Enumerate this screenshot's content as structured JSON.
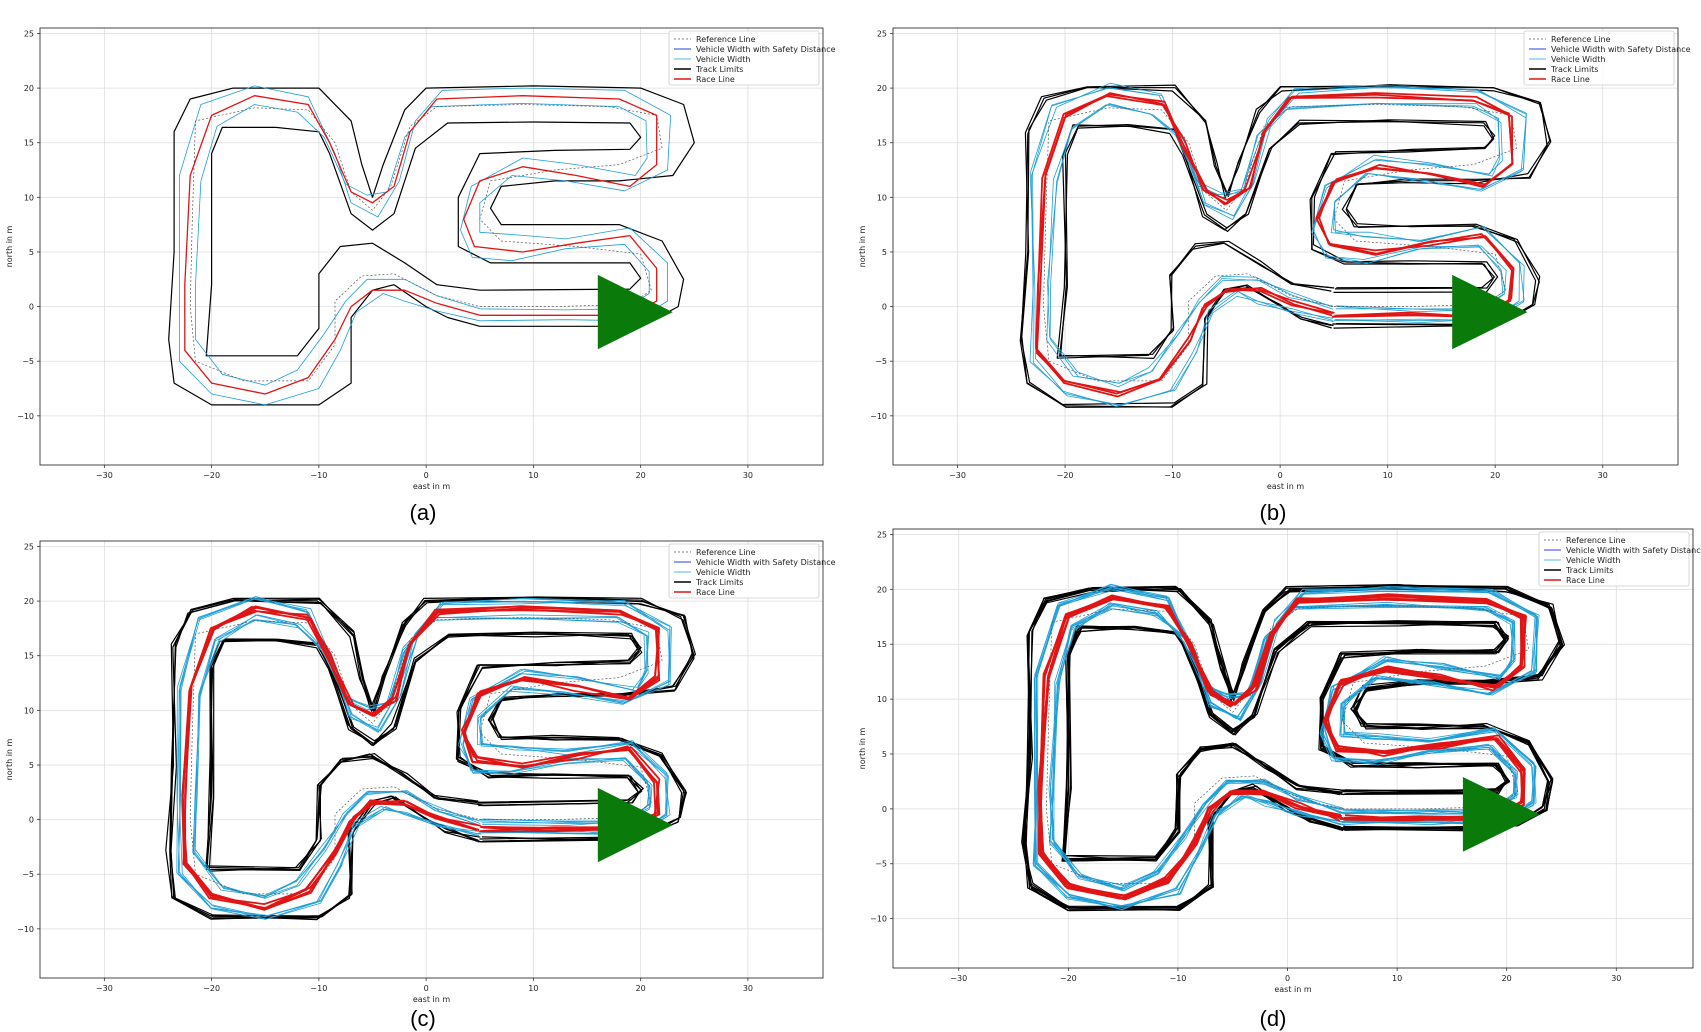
{
  "figure": {
    "captions": [
      "(a)",
      "(b)",
      "(c)",
      "(d)"
    ]
  },
  "chart_data": [
    {
      "type": "line",
      "panel": "(a)",
      "xlabel": "east in m",
      "ylabel": "north in m",
      "xlim": [
        -36,
        37
      ],
      "ylim": [
        -14.5,
        25.5
      ],
      "xticks": [
        -30,
        -20,
        -10,
        0,
        10,
        20,
        30
      ],
      "yticks": [
        -10,
        -5,
        0,
        5,
        10,
        15,
        20,
        25
      ],
      "grid": true,
      "legend_position": "top-right",
      "jitter_copies": 1,
      "legend": [
        "Reference Line",
        "Vehicle Width with Safety Distance",
        "Vehicle Width",
        "Track Limits",
        "Race Line"
      ],
      "start_marker": {
        "x": 16,
        "y": -0.5,
        "tip_x": 23,
        "color": "#0a7a0a"
      }
    },
    {
      "type": "line",
      "panel": "(b)",
      "xlabel": "east in m",
      "ylabel": "north in m",
      "xlim": [
        -36,
        37
      ],
      "ylim": [
        -14.5,
        25.5
      ],
      "xticks": [
        -30,
        -20,
        -10,
        0,
        10,
        20,
        30
      ],
      "yticks": [
        -10,
        -5,
        0,
        5,
        10,
        15,
        20,
        25
      ],
      "grid": true,
      "legend_position": "top-right",
      "jitter_copies": 3,
      "legend": [
        "Reference Line",
        "Vehicle Width with Safety Distance",
        "Vehicle Width",
        "Track Limits",
        "Race Line"
      ],
      "start_marker": {
        "x": 16,
        "y": -0.5,
        "tip_x": 23,
        "color": "#0a7a0a"
      }
    },
    {
      "type": "line",
      "panel": "(c)",
      "xlabel": "east in m",
      "ylabel": "north in m",
      "xlim": [
        -36,
        37
      ],
      "ylim": [
        -14.5,
        25.5
      ],
      "xticks": [
        -30,
        -20,
        -10,
        0,
        10,
        20,
        30
      ],
      "yticks": [
        -10,
        -5,
        0,
        5,
        10,
        15,
        20,
        25
      ],
      "grid": true,
      "legend_position": "top-right",
      "jitter_copies": 5,
      "legend": [
        "Reference Line",
        "Vehicle Width with Safety Distance",
        "Vehicle Width",
        "Track Limits",
        "Race Line"
      ],
      "start_marker": {
        "x": 16,
        "y": -0.5,
        "tip_x": 23,
        "color": "#0a7a0a"
      }
    },
    {
      "type": "line",
      "panel": "(d)",
      "xlabel": "east in m",
      "ylabel": "north in m",
      "xlim": [
        -36,
        37
      ],
      "ylim": [
        -14.5,
        25.5
      ],
      "xticks": [
        -30,
        -20,
        -10,
        0,
        10,
        20,
        30
      ],
      "yticks": [
        -10,
        -5,
        0,
        5,
        10,
        15,
        20,
        25
      ],
      "grid": true,
      "legend_position": "top-right",
      "jitter_copies": 8,
      "legend": [
        "Reference Line",
        "Vehicle Width with Safety Distance",
        "Vehicle Width",
        "Track Limits",
        "Race Line"
      ],
      "start_marker": {
        "x": 16,
        "y": -0.5,
        "tip_x": 23,
        "color": "#0a7a0a"
      }
    }
  ],
  "track": {
    "outer_limit": [
      [
        5,
        -1.8
      ],
      [
        17,
        -1.8
      ],
      [
        21,
        -1.3
      ],
      [
        23.5,
        0
      ],
      [
        24,
        2.5
      ],
      [
        22,
        6
      ],
      [
        18,
        7.5
      ],
      [
        12,
        7.5
      ],
      [
        7,
        7.5
      ],
      [
        6,
        9
      ],
      [
        7,
        11
      ],
      [
        12,
        11.5
      ],
      [
        18,
        11.5
      ],
      [
        23,
        12
      ],
      [
        25,
        15
      ],
      [
        24,
        18.5
      ],
      [
        20,
        20
      ],
      [
        10,
        20.2
      ],
      [
        0,
        20
      ],
      [
        -2,
        18
      ],
      [
        -4,
        13
      ],
      [
        -5,
        10
      ],
      [
        -6,
        13
      ],
      [
        -7,
        17
      ],
      [
        -10,
        20
      ],
      [
        -18,
        20
      ],
      [
        -22,
        19
      ],
      [
        -23.5,
        16
      ],
      [
        -23.5,
        5
      ],
      [
        -24,
        -3
      ],
      [
        -23.5,
        -7
      ],
      [
        -20,
        -9
      ],
      [
        -10,
        -9
      ],
      [
        -7,
        -7
      ],
      [
        -7,
        -1
      ],
      [
        -5,
        1.5
      ],
      [
        -3,
        2
      ],
      [
        0,
        0
      ],
      [
        2,
        -1
      ],
      [
        5,
        -1.8
      ]
    ],
    "inner_limit": [
      [
        5,
        1.5
      ],
      [
        19,
        1.6
      ],
      [
        20,
        2.6
      ],
      [
        19,
        4
      ],
      [
        12,
        4
      ],
      [
        6,
        4
      ],
      [
        3,
        5.5
      ],
      [
        3,
        10
      ],
      [
        5,
        14
      ],
      [
        12,
        14.3
      ],
      [
        19,
        14.4
      ],
      [
        20,
        15.5
      ],
      [
        19,
        16.8
      ],
      [
        10,
        16.9
      ],
      [
        2,
        16.8
      ],
      [
        -1,
        14.5
      ],
      [
        -3,
        8.5
      ],
      [
        -5,
        7
      ],
      [
        -7,
        8.5
      ],
      [
        -9,
        14
      ],
      [
        -10,
        16
      ],
      [
        -14,
        16.4
      ],
      [
        -19,
        16.4
      ],
      [
        -20,
        14
      ],
      [
        -20,
        2
      ],
      [
        -20.5,
        -4.5
      ],
      [
        -12,
        -4.5
      ],
      [
        -10,
        -2
      ],
      [
        -10,
        3
      ],
      [
        -8,
        5.5
      ],
      [
        -5,
        5.8
      ],
      [
        -2,
        4
      ],
      [
        1,
        2
      ],
      [
        5,
        1.5
      ]
    ],
    "race_line": [
      [
        5,
        -0.8
      ],
      [
        12,
        -0.8
      ],
      [
        19,
        -0.8
      ],
      [
        21.5,
        0.5
      ],
      [
        21.5,
        3.5
      ],
      [
        19,
        6.5
      ],
      [
        14,
        5.8
      ],
      [
        9,
        5
      ],
      [
        4.5,
        5.5
      ],
      [
        3.5,
        8
      ],
      [
        5,
        11.5
      ],
      [
        9,
        12.8
      ],
      [
        14,
        12
      ],
      [
        19,
        11
      ],
      [
        21.5,
        13
      ],
      [
        21.5,
        17.5
      ],
      [
        18,
        19
      ],
      [
        9,
        19.3
      ],
      [
        1,
        19
      ],
      [
        -1.5,
        16
      ],
      [
        -3,
        11
      ],
      [
        -5,
        9.5
      ],
      [
        -7,
        10.5
      ],
      [
        -9,
        15
      ],
      [
        -11,
        18.5
      ],
      [
        -16,
        19.3
      ],
      [
        -20,
        17.5
      ],
      [
        -22,
        12
      ],
      [
        -22.5,
        2
      ],
      [
        -22.5,
        -4
      ],
      [
        -20,
        -7
      ],
      [
        -15,
        -8
      ],
      [
        -11,
        -6.5
      ],
      [
        -8.5,
        -3
      ],
      [
        -7,
        0
      ],
      [
        -5,
        1.5
      ],
      [
        -2,
        1.5
      ],
      [
        1,
        0.3
      ],
      [
        5,
        -0.8
      ]
    ],
    "reference_line": [
      [
        5,
        0
      ],
      [
        12,
        0
      ],
      [
        19,
        0.2
      ],
      [
        21,
        1.5
      ],
      [
        20,
        4.8
      ],
      [
        14,
        5.5
      ],
      [
        7,
        6
      ],
      [
        5,
        8
      ],
      [
        6,
        11.5
      ],
      [
        12,
        12.5
      ],
      [
        18,
        13
      ],
      [
        22,
        14.5
      ],
      [
        21.5,
        17.5
      ],
      [
        17,
        18.3
      ],
      [
        9,
        18.5
      ],
      [
        1,
        18.3
      ],
      [
        -1.5,
        16.5
      ],
      [
        -3.3,
        11
      ],
      [
        -5,
        8.8
      ],
      [
        -7,
        10.5
      ],
      [
        -8.5,
        15
      ],
      [
        -11,
        18
      ],
      [
        -16,
        18.2
      ],
      [
        -21.5,
        17
      ],
      [
        -21.8,
        8
      ],
      [
        -22,
        0
      ],
      [
        -21.5,
        -5
      ],
      [
        -17,
        -6.8
      ],
      [
        -11,
        -6.8
      ],
      [
        -8.5,
        -3.5
      ],
      [
        -8.5,
        0.5
      ],
      [
        -6,
        2.8
      ],
      [
        -3,
        3
      ],
      [
        1,
        1
      ],
      [
        5,
        0
      ]
    ],
    "blue_1": [
      [
        5,
        -1.3
      ],
      [
        13,
        -1.2
      ],
      [
        19.5,
        -1.3
      ],
      [
        22.5,
        0.5
      ],
      [
        22.5,
        4
      ],
      [
        19,
        7.2
      ],
      [
        13,
        6.2
      ],
      [
        8,
        6.6
      ],
      [
        5,
        6.8
      ],
      [
        5,
        9.5
      ],
      [
        8,
        12
      ],
      [
        13,
        11.5
      ],
      [
        18.5,
        10.6
      ],
      [
        22.5,
        12.5
      ],
      [
        22.8,
        17.5
      ],
      [
        18.5,
        19.8
      ],
      [
        9,
        20
      ],
      [
        1.5,
        19.8
      ],
      [
        -1,
        17
      ],
      [
        -2.5,
        11.5
      ],
      [
        -4.5,
        8.2
      ],
      [
        -7,
        9.5
      ],
      [
        -8.5,
        14
      ],
      [
        -11,
        19.2
      ],
      [
        -16,
        20.2
      ],
      [
        -21,
        18.5
      ],
      [
        -23,
        12
      ],
      [
        -23,
        2
      ],
      [
        -23,
        -5
      ],
      [
        -20,
        -8
      ],
      [
        -15,
        -9
      ],
      [
        -10,
        -7.5
      ],
      [
        -8,
        -4
      ],
      [
        -6.5,
        -0.5
      ],
      [
        -4,
        1.2
      ],
      [
        -2,
        0.5
      ],
      [
        1,
        -0.4
      ],
      [
        5,
        -1.3
      ]
    ],
    "blue_2": [
      [
        5,
        -0.2
      ],
      [
        13,
        -0.3
      ],
      [
        18.5,
        -0.2
      ],
      [
        20.8,
        1.2
      ],
      [
        20.8,
        3.2
      ],
      [
        18.5,
        5.7
      ],
      [
        13,
        5.3
      ],
      [
        8,
        4.2
      ],
      [
        4.3,
        4.5
      ],
      [
        3.2,
        7
      ],
      [
        4.2,
        11
      ],
      [
        9,
        13.6
      ],
      [
        14,
        13
      ],
      [
        19.5,
        12
      ],
      [
        20.6,
        13.6
      ],
      [
        20.5,
        17
      ],
      [
        18,
        18.3
      ],
      [
        9,
        18.6
      ],
      [
        0.5,
        18.3
      ],
      [
        -2,
        15.5
      ],
      [
        -3.6,
        10.5
      ],
      [
        -5.5,
        10.2
      ],
      [
        -7.5,
        11.2
      ],
      [
        -9.5,
        15.5
      ],
      [
        -12,
        17.8
      ],
      [
        -16,
        18.5
      ],
      [
        -19.5,
        16.5
      ],
      [
        -21,
        11.5
      ],
      [
        -21.5,
        2
      ],
      [
        -21.5,
        -3
      ],
      [
        -19,
        -6.2
      ],
      [
        -15,
        -7.2
      ],
      [
        -12,
        -5.8
      ],
      [
        -9.5,
        -2.5
      ],
      [
        -7.5,
        0.5
      ],
      [
        -5.5,
        2.5
      ],
      [
        -2,
        2.5
      ],
      [
        1,
        1
      ],
      [
        5,
        -0.2
      ]
    ]
  }
}
